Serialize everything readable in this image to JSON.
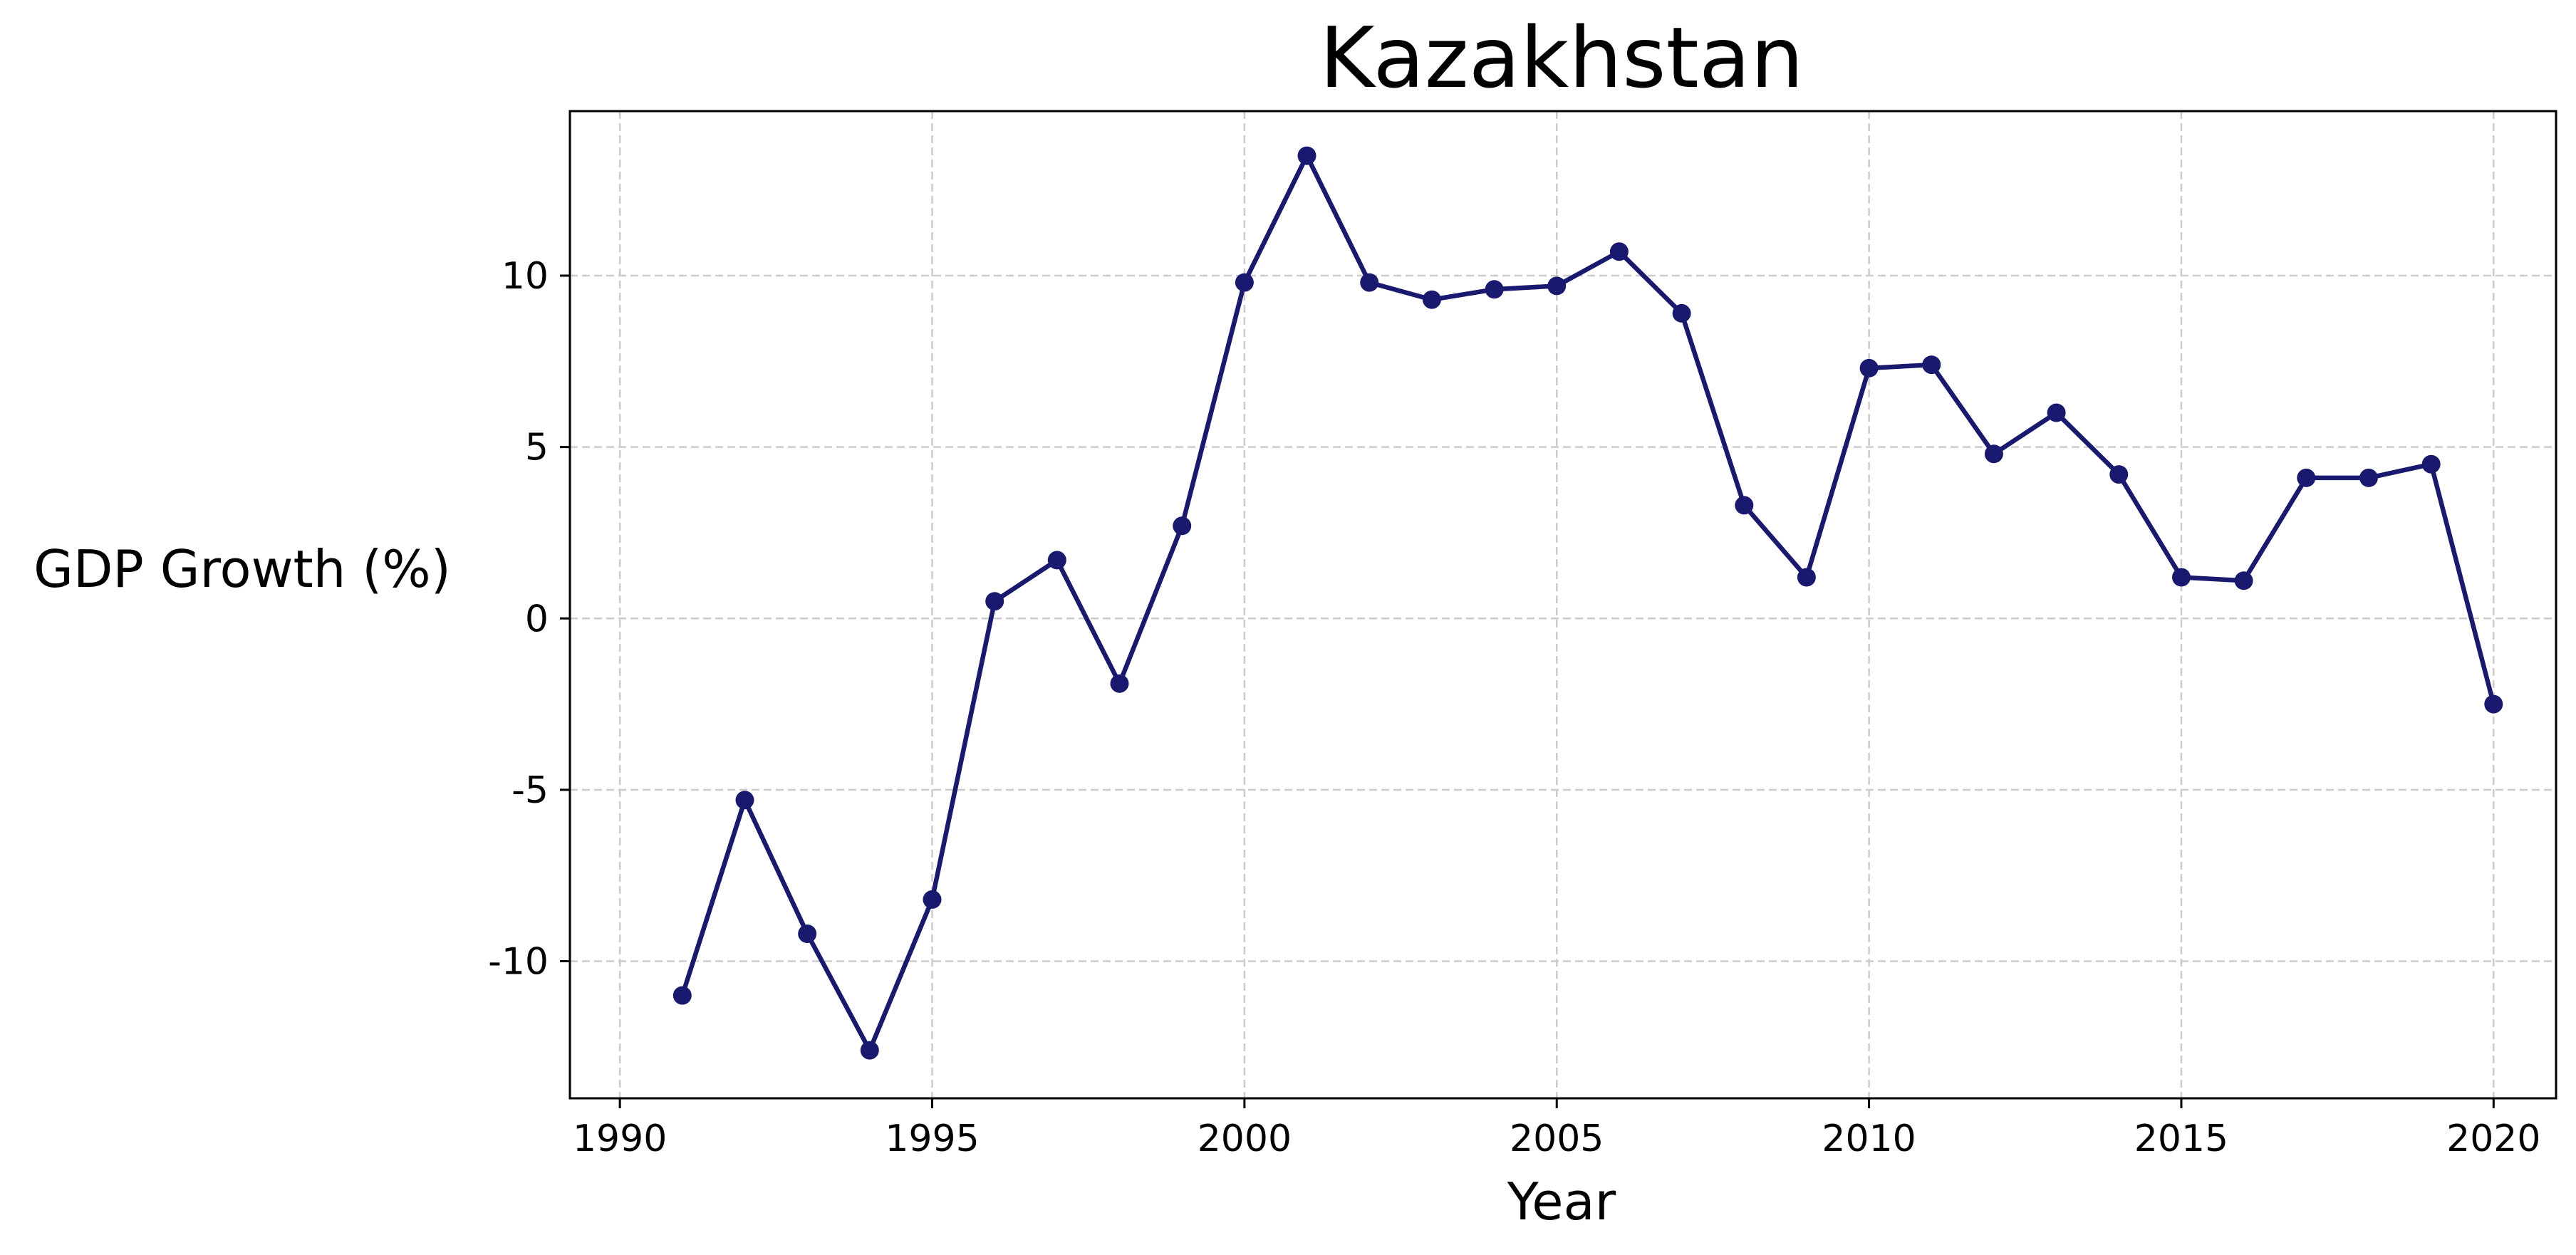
{
  "chart_data": {
    "type": "line",
    "title": "Kazakhstan",
    "xlabel": "Year",
    "ylabel": "GDP Growth (%)",
    "xlim": [
      1989.2,
      2021.0
    ],
    "ylim": [
      -14.0,
      14.8
    ],
    "xticks": [
      1990,
      1995,
      2000,
      2005,
      2010,
      2015,
      2020
    ],
    "yticks": [
      -10,
      -5,
      0,
      5,
      10
    ],
    "grid": true,
    "grid_style": "dashed",
    "legend": "none",
    "series": [
      {
        "color": "#191970",
        "marker": "circle",
        "points": [
          {
            "x": 1991,
            "y": -11.0
          },
          {
            "x": 1992,
            "y": -5.3
          },
          {
            "x": 1993,
            "y": -9.2
          },
          {
            "x": 1994,
            "y": -12.6
          },
          {
            "x": 1995,
            "y": -8.2
          },
          {
            "x": 1996,
            "y": 0.5
          },
          {
            "x": 1997,
            "y": 1.7
          },
          {
            "x": 1998,
            "y": -1.9
          },
          {
            "x": 1999,
            "y": 2.7
          },
          {
            "x": 2000,
            "y": 9.8
          },
          {
            "x": 2001,
            "y": 13.5
          },
          {
            "x": 2002,
            "y": 9.8
          },
          {
            "x": 2003,
            "y": 9.3
          },
          {
            "x": 2004,
            "y": 9.6
          },
          {
            "x": 2005,
            "y": 9.7
          },
          {
            "x": 2006,
            "y": 10.7
          },
          {
            "x": 2007,
            "y": 8.9
          },
          {
            "x": 2008,
            "y": 3.3
          },
          {
            "x": 2009,
            "y": 1.2
          },
          {
            "x": 2010,
            "y": 7.3
          },
          {
            "x": 2011,
            "y": 7.4
          },
          {
            "x": 2012,
            "y": 4.8
          },
          {
            "x": 2013,
            "y": 6.0
          },
          {
            "x": 2014,
            "y": 4.2
          },
          {
            "x": 2015,
            "y": 1.2
          },
          {
            "x": 2016,
            "y": 1.1
          },
          {
            "x": 2017,
            "y": 4.1
          },
          {
            "x": 2018,
            "y": 4.1
          },
          {
            "x": 2019,
            "y": 4.5
          },
          {
            "x": 2020,
            "y": -2.5
          }
        ]
      }
    ],
    "colors": {
      "line": "#191970",
      "grid": "#cccccc",
      "axes": "#000000",
      "background": "#ffffff"
    }
  }
}
